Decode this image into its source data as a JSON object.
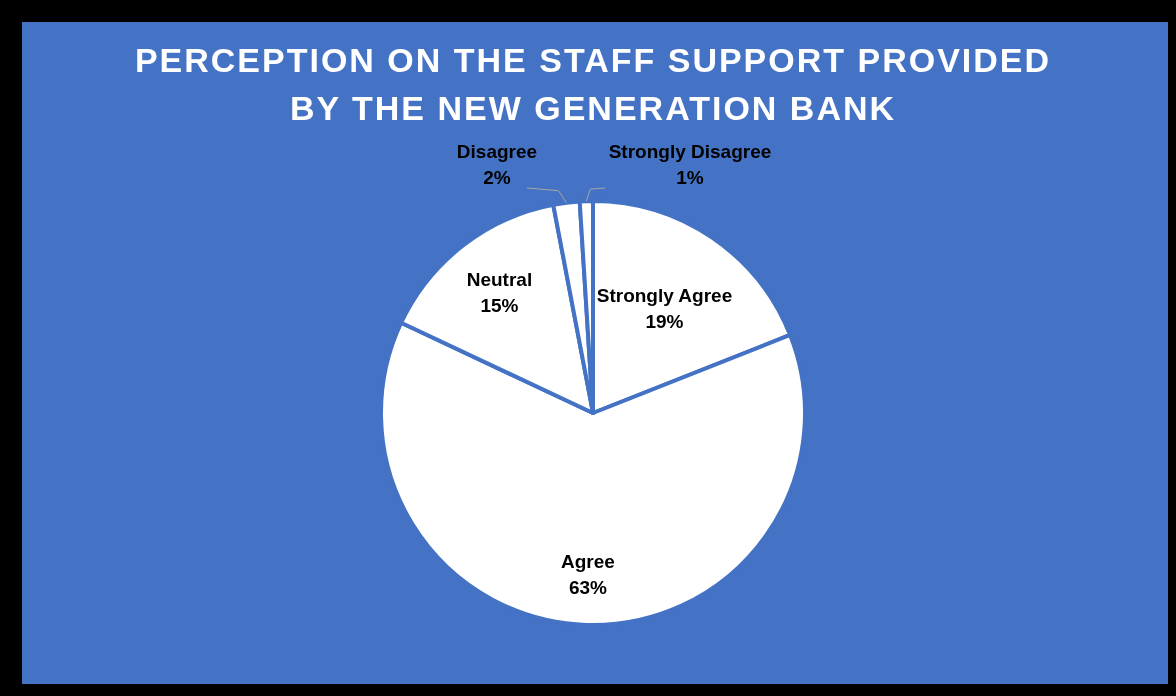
{
  "chart_data": {
    "type": "pie",
    "title": "PERCEPTION ON THE STAFF SUPPORT PROVIDED BY THE NEW GENERATION BANK",
    "categories": [
      "Strongly Agree",
      "Agree",
      "Neutral",
      "Disagree",
      "Strongly Disagree"
    ],
    "values": [
      19,
      63,
      15,
      2,
      1
    ],
    "colors": [
      "#ffffff",
      "#ffffff",
      "#ffffff",
      "#ffffff",
      "#ffffff"
    ],
    "value_labels": [
      "19%",
      "63%",
      "15%",
      "2%",
      "1%"
    ]
  }
}
